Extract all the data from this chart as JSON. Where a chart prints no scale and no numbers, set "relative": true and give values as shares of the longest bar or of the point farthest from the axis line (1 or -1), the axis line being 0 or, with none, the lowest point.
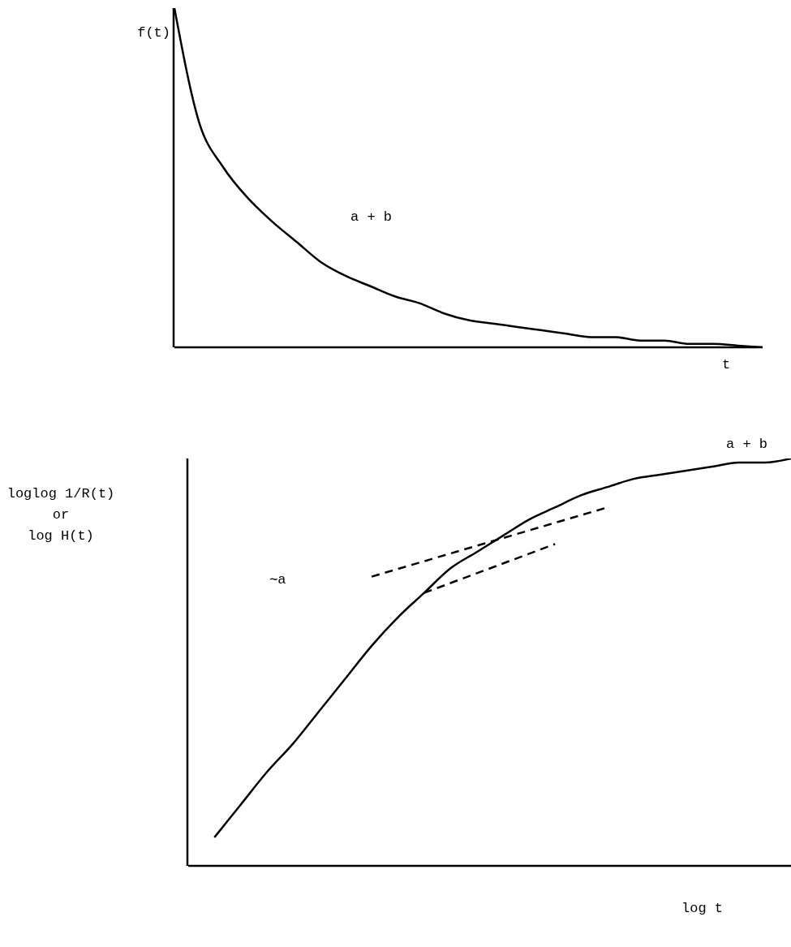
{
  "chart_data": [
    {
      "type": "line",
      "relative": true,
      "legend": false,
      "grid": false,
      "ylabel": "f(t)",
      "xlabel": "t",
      "annotations": [
        "a + b"
      ],
      "categories": [
        null,
        null,
        null,
        null,
        null,
        null,
        null,
        null,
        null,
        null,
        null,
        null,
        null,
        null,
        null,
        null,
        null,
        null,
        null,
        null,
        null,
        null,
        null,
        null,
        null
      ],
      "series": [
        {
          "color": "#000000",
          "line_style": "solid",
          "values": [
            1,
            0.665,
            0.53,
            0.44,
            0.37,
            0.31,
            0.25,
            0.21,
            0.18,
            0.15,
            0.13,
            0.1,
            0.08,
            0.07,
            0.06,
            0.05,
            0.04,
            0.03,
            0.03,
            0.02,
            0.02,
            0.01,
            0.01,
            0.005,
            0
          ]
        }
      ]
    },
    {
      "type": "line",
      "relative": true,
      "legend": false,
      "grid": false,
      "ylabel": "loglog 1/R(t)\nor\nlog H(t)",
      "xlabel": "log t",
      "annotations": [
        "∼a",
        "a + b"
      ],
      "categories": [
        null,
        null,
        null,
        null,
        null,
        null,
        null,
        null,
        null,
        null,
        null,
        null,
        null,
        null,
        null,
        null,
        null,
        null,
        null,
        null,
        null,
        null,
        null,
        null
      ],
      "series": [
        {
          "color": "#000000",
          "line_style": "solid",
          "values": [
            null,
            0.07,
            0.15,
            0.23,
            0.3,
            0.38,
            0.46,
            0.54,
            0.61,
            0.67,
            0.73,
            0.77,
            0.81,
            0.85,
            0.88,
            0.91,
            0.93,
            0.95,
            0.96,
            0.97,
            0.98,
            0.99,
            0.99,
            1
          ]
        },
        {
          "color": "#000000",
          "line_style": "dashed",
          "values": [
            null,
            null,
            null,
            null,
            null,
            null,
            null,
            0.71,
            null,
            null,
            null,
            null,
            null,
            null,
            null,
            null,
            0.88,
            null,
            null,
            null,
            null,
            null,
            null,
            null
          ]
        },
        {
          "color": "#000000",
          "line_style": "dashed",
          "values": [
            null,
            null,
            null,
            null,
            null,
            null,
            null,
            null,
            null,
            0.67,
            null,
            null,
            null,
            null,
            0.79,
            null,
            null,
            null,
            null,
            null,
            null,
            null,
            null,
            null
          ]
        }
      ]
    }
  ]
}
